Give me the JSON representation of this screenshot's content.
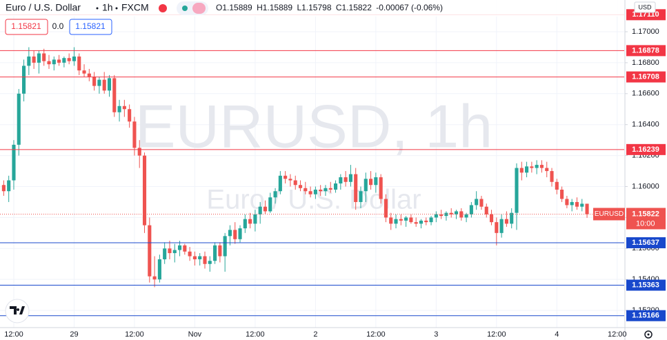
{
  "chart_data": {
    "type": "candlestick",
    "symbol": "Euro / U.S. Dollar",
    "interval": "1h",
    "source": "FXCM",
    "ohlc_legend": [
      "O1.15889",
      "H1.15889",
      "L1.15798",
      "C1.15822",
      "-0.00067 (-0.06%)"
    ],
    "trade": {
      "sell": "1.15821",
      "spread": "0.0",
      "buy": "1.15821"
    },
    "watermark": [
      "EURUSD, 1h",
      "Euro / U.S. Dollar"
    ],
    "currency": "USD",
    "last_price": {
      "value": 1.15822,
      "symbol": "EURUSD",
      "countdown": "10:00"
    },
    "up_color": "#26a69a",
    "down_color": "#ef5350",
    "grid": true,
    "x": [
      -2,
      -1,
      0,
      1,
      2,
      3,
      4,
      5,
      6,
      7,
      8,
      9,
      10,
      11,
      12,
      13,
      14,
      15,
      16,
      17,
      18,
      19,
      20,
      21,
      22,
      23,
      24,
      25,
      26,
      27,
      28,
      29,
      30,
      31,
      32,
      33,
      34,
      35,
      36,
      37,
      38,
      39,
      40,
      41,
      42,
      43,
      44,
      45,
      46,
      47,
      48,
      49,
      50,
      51,
      52,
      53,
      54,
      55,
      56,
      57,
      58,
      59,
      60,
      61,
      62,
      63,
      64,
      65,
      66,
      67,
      68,
      69,
      70,
      71,
      72,
      73,
      74,
      75,
      76,
      77,
      78,
      79,
      80,
      81,
      82,
      83,
      84,
      85,
      86,
      87,
      88,
      89,
      90,
      91,
      92,
      93,
      94,
      95,
      96,
      97,
      98,
      99,
      100,
      101,
      102,
      103,
      104,
      105,
      106,
      107,
      108,
      109,
      110,
      111,
      112,
      113,
      114
    ],
    "open": [
      1.1601,
      1.1597,
      1.1604,
      1.1627,
      1.166,
      1.1678,
      1.1684,
      1.168,
      1.1686,
      1.1681,
      1.1679,
      1.1682,
      1.168,
      1.1683,
      1.1681,
      1.1684,
      1.1675,
      1.1673,
      1.1671,
      1.1665,
      1.1669,
      1.1662,
      1.167,
      1.1648,
      1.1652,
      1.165,
      1.1642,
      1.1625,
      1.162,
      1.1575,
      1.1542,
      1.154,
      1.1553,
      1.156,
      1.1557,
      1.1559,
      1.1562,
      1.1558,
      1.1555,
      1.1553,
      1.1555,
      1.155,
      1.1552,
      1.1562,
      1.1555,
      1.1568,
      1.1572,
      1.1566,
      1.1573,
      1.1579,
      1.1576,
      1.1582,
      1.1587,
      1.1584,
      1.1593,
      1.1597,
      1.1607,
      1.1605,
      1.1604,
      1.1601,
      1.1599,
      1.1597,
      1.1595,
      1.1598,
      1.1597,
      1.1599,
      1.1598,
      1.1602,
      1.1606,
      1.1603,
      1.1608,
      1.159,
      1.1597,
      1.1605,
      1.1601,
      1.1606,
      1.1592,
      1.158,
      1.1576,
      1.1579,
      1.1578,
      1.158,
      1.1577,
      1.1576,
      1.1578,
      1.1577,
      1.158,
      1.1582,
      1.1581,
      1.1583,
      1.1582,
      1.1584,
      1.158,
      1.1582,
      1.1588,
      1.1592,
      1.1587,
      1.1582,
      1.1577,
      1.157,
      1.1579,
      1.1576,
      1.1583,
      1.1612,
      1.1609,
      1.1613,
      1.1612,
      1.1614,
      1.1612,
      1.161,
      1.1603,
      1.1598,
      1.1592,
      1.1588,
      1.159,
      1.1587,
      1.15889
    ],
    "high": [
      1.1604,
      1.1607,
      1.163,
      1.1663,
      1.1682,
      1.169,
      1.1688,
      1.1688,
      1.1689,
      1.1685,
      1.1684,
      1.1685,
      1.1684,
      1.1686,
      1.169,
      1.1686,
      1.1679,
      1.1676,
      1.1674,
      1.1671,
      1.1674,
      1.1672,
      1.1672,
      1.1656,
      1.1656,
      1.1653,
      1.1645,
      1.163,
      1.1622,
      1.158,
      1.1555,
      1.1556,
      1.1564,
      1.1565,
      1.1563,
      1.1565,
      1.1563,
      1.1561,
      1.1558,
      1.1557,
      1.1558,
      1.1555,
      1.1564,
      1.1564,
      1.157,
      1.1575,
      1.1577,
      1.1575,
      1.1582,
      1.1583,
      1.1585,
      1.159,
      1.1591,
      1.1596,
      1.1599,
      1.161,
      1.161,
      1.1608,
      1.1607,
      1.1604,
      1.1603,
      1.16,
      1.16,
      1.1601,
      1.1601,
      1.1603,
      1.1604,
      1.1608,
      1.161,
      1.1614,
      1.1612,
      1.16,
      1.1609,
      1.161,
      1.1609,
      1.1608,
      1.1595,
      1.1583,
      1.1582,
      1.1582,
      1.1581,
      1.1582,
      1.158,
      1.1579,
      1.158,
      1.1581,
      1.1584,
      1.1585,
      1.1584,
      1.1586,
      1.1585,
      1.1586,
      1.1583,
      1.159,
      1.1597,
      1.1594,
      1.1589,
      1.1585,
      1.158,
      1.1582,
      1.1584,
      1.1586,
      1.1615,
      1.1616,
      1.1616,
      1.1616,
      1.1617,
      1.1617,
      1.1616,
      1.1612,
      1.1605,
      1.16,
      1.1594,
      1.1592,
      1.1593,
      1.1592,
      1.15889
    ],
    "low": [
      1.1594,
      1.159,
      1.1598,
      1.162,
      1.1655,
      1.1672,
      1.1676,
      1.1673,
      1.1678,
      1.1676,
      1.1675,
      1.1678,
      1.1677,
      1.1679,
      1.1678,
      1.1672,
      1.1671,
      1.1668,
      1.1662,
      1.166,
      1.166,
      1.1658,
      1.1645,
      1.1642,
      1.1645,
      1.1638,
      1.162,
      1.1612,
      1.157,
      1.1538,
      1.1535,
      1.1538,
      1.155,
      1.1553,
      1.1551,
      1.1555,
      1.1556,
      1.1552,
      1.1549,
      1.1549,
      1.1547,
      1.1545,
      1.155,
      1.1551,
      1.1545,
      1.1562,
      1.1563,
      1.1564,
      1.157,
      1.1573,
      1.1571,
      1.1576,
      1.1582,
      1.1583,
      1.1589,
      1.1595,
      1.1602,
      1.16,
      1.1598,
      1.1597,
      1.1595,
      1.1593,
      1.1592,
      1.1594,
      1.1594,
      1.1596,
      1.1596,
      1.1598,
      1.16,
      1.16,
      1.1585,
      1.1586,
      1.159,
      1.1598,
      1.1596,
      1.1589,
      1.1577,
      1.1572,
      1.1573,
      1.1575,
      1.1574,
      1.1576,
      1.1574,
      1.1573,
      1.1575,
      1.1575,
      1.1577,
      1.1579,
      1.1578,
      1.158,
      1.1579,
      1.1578,
      1.1577,
      1.158,
      1.1585,
      1.1585,
      1.158,
      1.1575,
      1.1562,
      1.1567,
      1.1574,
      1.1573,
      1.1572,
      1.1604,
      1.1606,
      1.1609,
      1.1608,
      1.1609,
      1.1606,
      1.16,
      1.1595,
      1.159,
      1.1586,
      1.1584,
      1.1585,
      1.1584,
      1.15798
    ],
    "close": [
      1.1597,
      1.1604,
      1.1627,
      1.166,
      1.1678,
      1.1684,
      1.168,
      1.1686,
      1.1681,
      1.1679,
      1.1682,
      1.168,
      1.1683,
      1.1681,
      1.1684,
      1.1675,
      1.1673,
      1.1671,
      1.1665,
      1.1669,
      1.1662,
      1.167,
      1.1648,
      1.1652,
      1.165,
      1.1642,
      1.1625,
      1.162,
      1.1575,
      1.1542,
      1.154,
      1.1553,
      1.156,
      1.1557,
      1.1559,
      1.1562,
      1.1558,
      1.1555,
      1.1553,
      1.1555,
      1.155,
      1.1552,
      1.1562,
      1.1555,
      1.1568,
      1.1572,
      1.1566,
      1.1573,
      1.1579,
      1.1576,
      1.1582,
      1.1587,
      1.1584,
      1.1593,
      1.1597,
      1.1607,
      1.1605,
      1.1604,
      1.1601,
      1.1599,
      1.1597,
      1.1595,
      1.1598,
      1.1597,
      1.1599,
      1.1598,
      1.1602,
      1.1606,
      1.1603,
      1.1608,
      1.159,
      1.1597,
      1.1605,
      1.1601,
      1.1606,
      1.1592,
      1.158,
      1.1576,
      1.1579,
      1.1578,
      1.158,
      1.1577,
      1.1576,
      1.1578,
      1.1577,
      1.158,
      1.1582,
      1.1581,
      1.1583,
      1.1582,
      1.1584,
      1.158,
      1.1582,
      1.1588,
      1.1592,
      1.1587,
      1.1582,
      1.1577,
      1.157,
      1.1579,
      1.1576,
      1.1583,
      1.1612,
      1.1609,
      1.1613,
      1.1612,
      1.1614,
      1.1612,
      1.161,
      1.1603,
      1.1598,
      1.1592,
      1.1588,
      1.159,
      1.1587,
      1.15889,
      1.15822
    ],
    "xlim": [
      -2.74,
      121.4
    ],
    "xticks": [
      {
        "value": 0,
        "label": "12:00"
      },
      {
        "value": 12,
        "label": "29"
      },
      {
        "value": 24,
        "label": "12:00"
      },
      {
        "value": 36,
        "label": "Nov"
      },
      {
        "value": 48,
        "label": "12:00"
      },
      {
        "value": 60,
        "label": "2"
      },
      {
        "value": 72,
        "label": "12:00"
      },
      {
        "value": 84,
        "label": "3"
      },
      {
        "value": 96,
        "label": "12:00"
      },
      {
        "value": 108,
        "label": "4"
      },
      {
        "value": 120,
        "label": "12:00"
      }
    ],
    "ylim": [
      1.15089,
      1.17205
    ],
    "yticks": [
      {
        "value": 1.152,
        "label": "1.15200"
      },
      {
        "value": 1.154,
        "label": "1.15400"
      },
      {
        "value": 1.156,
        "label": "1.15600"
      },
      {
        "value": 1.158,
        "label": "1.15800"
      },
      {
        "value": 1.16,
        "label": "1.16000"
      },
      {
        "value": 1.162,
        "label": "1.16200"
      },
      {
        "value": 1.164,
        "label": "1.16400"
      },
      {
        "value": 1.166,
        "label": "1.16600"
      },
      {
        "value": 1.168,
        "label": "1.16800"
      },
      {
        "value": 1.17,
        "label": "1.17000"
      }
    ],
    "levels": [
      {
        "value": 1.1711,
        "label": "1.17110",
        "color": "#f23645"
      },
      {
        "value": 1.16878,
        "label": "1.16878",
        "color": "#f23645"
      },
      {
        "value": 1.16708,
        "label": "1.16708",
        "color": "#f23645"
      },
      {
        "value": 1.16239,
        "label": "1.16239",
        "color": "#f23645"
      },
      {
        "value": 1.15637,
        "label": "1.15637",
        "color": "#1848cc"
      },
      {
        "value": 1.15363,
        "label": "1.15363",
        "color": "#1848cc"
      },
      {
        "value": 1.15166,
        "label": "1.15166",
        "color": "#1848cc"
      }
    ]
  }
}
